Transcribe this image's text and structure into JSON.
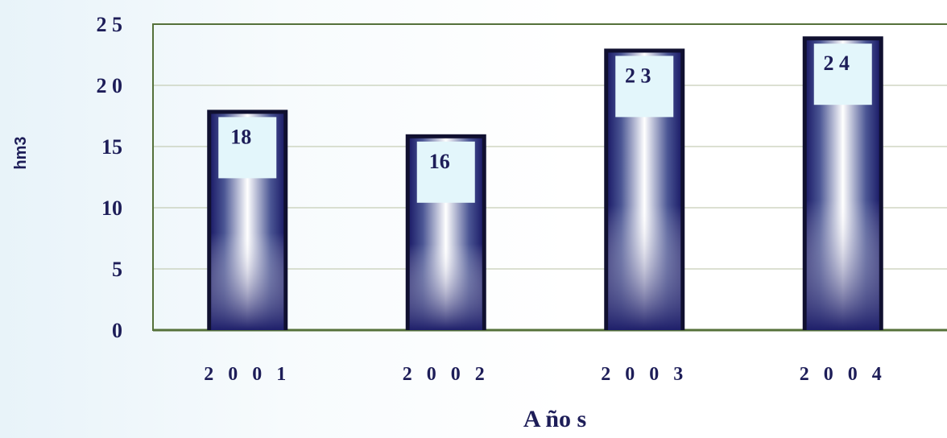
{
  "chart_data": {
    "type": "bar",
    "categories": [
      "2 0 0 1",
      "2 0 0 2",
      "2 0 0 3",
      "2 0 0 4"
    ],
    "values": [
      18,
      16,
      23,
      24
    ],
    "data_labels": [
      "18",
      "16",
      "2 3",
      "2 4"
    ],
    "y_tick_labels": [
      "0",
      "5",
      "10",
      "15",
      "2 0",
      "2 5"
    ],
    "y_tick_values": [
      0,
      5,
      10,
      15,
      20,
      25
    ],
    "ylabel": "hm3",
    "xlabel": "A ño s",
    "ylim": [
      0,
      25
    ],
    "grid": true,
    "colors": {
      "bar_dark": "#1e1f6a",
      "bar_light": "#ffffff",
      "label_box": "#e3f6fb",
      "axis": "#55713a",
      "text": "#1d1d58"
    }
  }
}
